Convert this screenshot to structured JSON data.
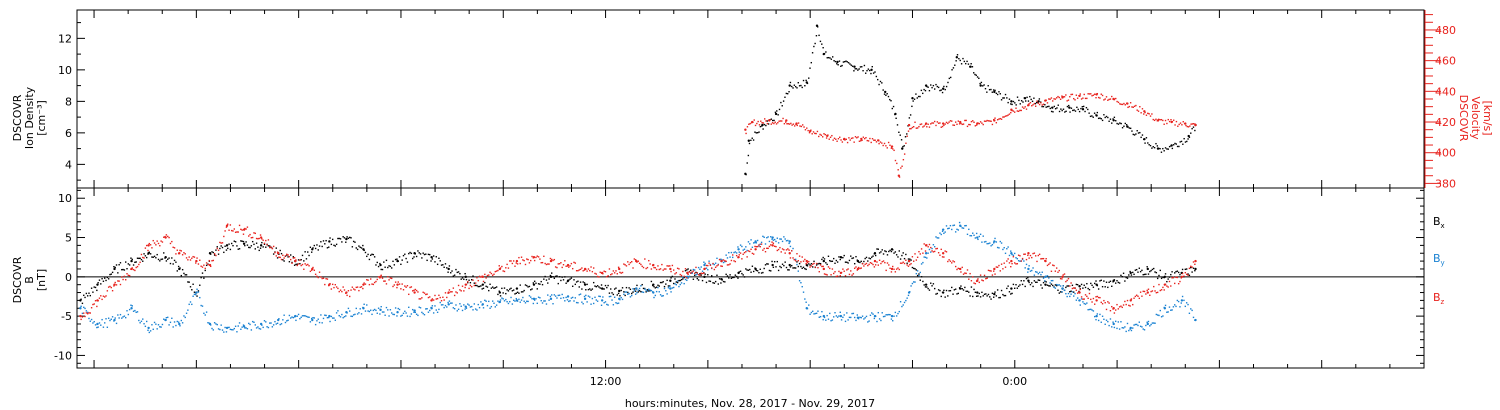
{
  "colors": {
    "black": "#000000",
    "red": "#e8231e",
    "blue": "#1a82d2"
  },
  "xlabel": "hours:minutes, Nov. 28, 2017 - Nov. 29, 2017",
  "x_ticks": [
    {
      "hours": 12,
      "label": "12:00"
    },
    {
      "hours": 24,
      "label": "0:00"
    }
  ],
  "panel1": {
    "ylabel_left": [
      "DSCOVR",
      "Ion Density",
      "[cm⁻³]"
    ],
    "ylabel_right": [
      "DSCOVR",
      "Velocity",
      "[km/s]"
    ],
    "left_ticks": [
      "4",
      "6",
      "8",
      "10",
      "12"
    ],
    "right_ticks": [
      "380",
      "400",
      "420",
      "440",
      "460",
      "480"
    ]
  },
  "panel2": {
    "ylabel_left": [
      "DSCOVR",
      "B",
      "[nT]"
    ],
    "ticks": [
      "-10",
      "-5",
      "0",
      "5",
      "10"
    ],
    "legend": [
      {
        "base": "B",
        "sub": "x"
      },
      {
        "base": "B",
        "sub": "y"
      },
      {
        "base": "B",
        "sub": "z"
      }
    ]
  },
  "chart_data": [
    {
      "type": "scatter",
      "x_axis": "hours since Nov. 28, 2017 00:00",
      "xlim": [
        -3.5,
        36
      ],
      "ylim_left": [
        2.5,
        13.8
      ],
      "ylim_right": [
        377,
        493
      ],
      "series": [
        {
          "name": "Ion Density",
          "axis": "left",
          "points": [
            [
              16.1,
              3.4
            ],
            [
              16.2,
              5.5
            ],
            [
              16.6,
              6.5
            ],
            [
              17.0,
              7.2
            ],
            [
              17.4,
              9.0
            ],
            [
              17.9,
              9.2
            ],
            [
              18.2,
              12.8
            ],
            [
              18.4,
              11.0
            ],
            [
              18.8,
              10.5
            ],
            [
              19.3,
              10.2
            ],
            [
              19.8,
              10.0
            ],
            [
              20.2,
              8.6
            ],
            [
              20.5,
              7.2
            ],
            [
              20.7,
              5.0
            ],
            [
              21.0,
              8.2
            ],
            [
              21.4,
              9.0
            ],
            [
              21.9,
              8.8
            ],
            [
              22.3,
              10.8
            ],
            [
              22.7,
              10.2
            ],
            [
              23.0,
              9.0
            ],
            [
              23.4,
              8.6
            ],
            [
              23.9,
              8.0
            ],
            [
              24.3,
              8.2
            ],
            [
              24.7,
              8.0
            ],
            [
              25.1,
              7.6
            ],
            [
              25.6,
              7.6
            ],
            [
              26.0,
              7.5
            ],
            [
              26.4,
              7.1
            ],
            [
              26.9,
              6.8
            ],
            [
              27.3,
              6.4
            ],
            [
              27.8,
              5.6
            ],
            [
              28.2,
              5.0
            ],
            [
              28.6,
              5.2
            ],
            [
              29.1,
              5.8
            ],
            [
              29.3,
              6.5
            ]
          ]
        },
        {
          "name": "Velocity",
          "axis": "right",
          "points": [
            [
              16.1,
              415
            ],
            [
              16.3,
              420
            ],
            [
              16.8,
              421
            ],
            [
              17.3,
              421
            ],
            [
              17.6,
              419
            ],
            [
              18.0,
              414
            ],
            [
              18.5,
              411
            ],
            [
              19.0,
              409
            ],
            [
              19.5,
              409
            ],
            [
              20.0,
              408
            ],
            [
              20.4,
              404
            ],
            [
              20.6,
              385
            ],
            [
              20.9,
              418
            ],
            [
              21.4,
              419
            ],
            [
              21.9,
              419
            ],
            [
              22.4,
              420
            ],
            [
              22.9,
              419
            ],
            [
              23.4,
              421
            ],
            [
              23.9,
              428
            ],
            [
              24.4,
              431
            ],
            [
              24.9,
              434
            ],
            [
              25.4,
              436
            ],
            [
              25.9,
              437
            ],
            [
              26.4,
              438
            ],
            [
              26.9,
              435
            ],
            [
              27.3,
              432
            ],
            [
              27.8,
              427
            ],
            [
              28.2,
              421
            ],
            [
              28.6,
              420
            ],
            [
              29.0,
              419
            ],
            [
              29.3,
              418
            ]
          ]
        }
      ]
    },
    {
      "type": "scatter",
      "x_axis": "hours since Nov. 28, 2017 00:00",
      "xlim": [
        -3.5,
        36
      ],
      "ylim": [
        -11.6,
        11.3
      ],
      "series": [
        {
          "name": "Bx",
          "points": [
            [
              -3.4,
              -3
            ],
            [
              -2.9,
              -1
            ],
            [
              -2.4,
              1
            ],
            [
              -1.9,
              2
            ],
            [
              -1.4,
              3
            ],
            [
              -0.9,
              2.5
            ],
            [
              -0.5,
              1
            ],
            [
              0.0,
              -2
            ],
            [
              0.4,
              3
            ],
            [
              0.9,
              4
            ],
            [
              1.4,
              4.2
            ],
            [
              1.9,
              4
            ],
            [
              2.4,
              3
            ],
            [
              2.9,
              2
            ],
            [
              3.4,
              3.5
            ],
            [
              3.9,
              4.5
            ],
            [
              4.4,
              4.8
            ],
            [
              4.9,
              3.5
            ],
            [
              5.4,
              1.5
            ],
            [
              5.9,
              2
            ],
            [
              6.4,
              3
            ],
            [
              6.9,
              2.5
            ],
            [
              7.4,
              1
            ],
            [
              7.9,
              0
            ],
            [
              8.4,
              -1
            ],
            [
              8.9,
              -2
            ],
            [
              9.4,
              -1.5
            ],
            [
              9.9,
              -1
            ],
            [
              10.4,
              0
            ],
            [
              10.9,
              -0.5
            ],
            [
              11.4,
              -1
            ],
            [
              11.9,
              -1.5
            ],
            [
              12.4,
              -1.8
            ],
            [
              12.9,
              -1.5
            ],
            [
              13.4,
              -1
            ],
            [
              13.9,
              -0.5
            ],
            [
              14.4,
              0.5
            ],
            [
              14.9,
              0
            ],
            [
              15.4,
              -0.3
            ],
            [
              15.9,
              0.5
            ],
            [
              16.4,
              1
            ],
            [
              16.9,
              1.5
            ],
            [
              17.4,
              1.5
            ],
            [
              17.9,
              1.5
            ],
            [
              18.4,
              2
            ],
            [
              18.9,
              2.5
            ],
            [
              19.4,
              2
            ],
            [
              19.9,
              3
            ],
            [
              20.4,
              3.5
            ],
            [
              20.9,
              2
            ],
            [
              21.4,
              -1
            ],
            [
              21.9,
              -2
            ],
            [
              22.4,
              -1.5
            ],
            [
              22.9,
              -2
            ],
            [
              23.4,
              -2.2
            ],
            [
              23.9,
              -1.5
            ],
            [
              24.4,
              -0.5
            ],
            [
              24.9,
              -1
            ],
            [
              25.4,
              -1.5
            ],
            [
              25.9,
              -1.2
            ],
            [
              26.4,
              -1
            ],
            [
              26.9,
              -0.5
            ],
            [
              27.4,
              0.5
            ],
            [
              27.9,
              1
            ],
            [
              28.4,
              0
            ],
            [
              28.9,
              0.5
            ],
            [
              29.3,
              1
            ]
          ]
        },
        {
          "name": "By",
          "points": [
            [
              -3.4,
              -4
            ],
            [
              -2.9,
              -6
            ],
            [
              -2.4,
              -5.5
            ],
            [
              -1.9,
              -4
            ],
            [
              -1.4,
              -6.5
            ],
            [
              -0.9,
              -5.5
            ],
            [
              -0.5,
              -6
            ],
            [
              0.0,
              -2
            ],
            [
              0.4,
              -6
            ],
            [
              0.9,
              -6.5
            ],
            [
              1.4,
              -6.3
            ],
            [
              1.9,
              -6
            ],
            [
              2.4,
              -5.5
            ],
            [
              2.9,
              -5
            ],
            [
              3.4,
              -5.5
            ],
            [
              3.9,
              -5
            ],
            [
              4.4,
              -4.5
            ],
            [
              4.9,
              -4
            ],
            [
              5.4,
              -4.2
            ],
            [
              5.9,
              -4.5
            ],
            [
              6.4,
              -4.3
            ],
            [
              6.9,
              -4
            ],
            [
              7.4,
              -3.5
            ],
            [
              7.9,
              -3.8
            ],
            [
              8.4,
              -3.5
            ],
            [
              8.9,
              -3.2
            ],
            [
              9.4,
              -3
            ],
            [
              9.9,
              -2.8
            ],
            [
              10.4,
              -2.8
            ],
            [
              10.9,
              -2.5
            ],
            [
              11.4,
              -2.8
            ],
            [
              11.9,
              -3
            ],
            [
              12.4,
              -2.8
            ],
            [
              12.9,
              -1.5
            ],
            [
              13.4,
              -2
            ],
            [
              13.9,
              -1.5
            ],
            [
              14.4,
              0
            ],
            [
              14.9,
              1.5
            ],
            [
              15.4,
              2
            ],
            [
              15.9,
              3.5
            ],
            [
              16.4,
              4.5
            ],
            [
              16.9,
              5
            ],
            [
              17.4,
              4.5
            ],
            [
              17.9,
              -4
            ],
            [
              18.4,
              -5
            ],
            [
              18.9,
              -5
            ],
            [
              19.4,
              -5.2
            ],
            [
              19.9,
              -5
            ],
            [
              20.4,
              -5
            ],
            [
              20.9,
              -2
            ],
            [
              21.4,
              3
            ],
            [
              21.9,
              6
            ],
            [
              22.4,
              6.5
            ],
            [
              22.9,
              5
            ],
            [
              23.4,
              4.5
            ],
            [
              23.9,
              3
            ],
            [
              24.4,
              1
            ],
            [
              24.9,
              0
            ],
            [
              25.4,
              -1.5
            ],
            [
              25.9,
              -3
            ],
            [
              26.4,
              -5
            ],
            [
              26.9,
              -6
            ],
            [
              27.4,
              -6.5
            ],
            [
              27.9,
              -6
            ],
            [
              28.4,
              -4
            ],
            [
              28.9,
              -3
            ],
            [
              29.3,
              -5.5
            ]
          ]
        },
        {
          "name": "Bz",
          "points": [
            [
              -3.4,
              -5
            ],
            [
              -2.9,
              -3
            ],
            [
              -2.4,
              -1
            ],
            [
              -1.9,
              1
            ],
            [
              -1.4,
              4
            ],
            [
              -0.9,
              5
            ],
            [
              -0.5,
              3
            ],
            [
              0.0,
              2
            ],
            [
              0.4,
              1.5
            ],
            [
              0.9,
              6.5
            ],
            [
              1.4,
              6
            ],
            [
              1.9,
              5
            ],
            [
              2.4,
              3
            ],
            [
              2.9,
              2
            ],
            [
              3.4,
              1
            ],
            [
              3.9,
              -1
            ],
            [
              4.4,
              -2
            ],
            [
              4.9,
              -1
            ],
            [
              5.4,
              0
            ],
            [
              5.9,
              -1
            ],
            [
              6.4,
              -2
            ],
            [
              6.9,
              -3
            ],
            [
              7.4,
              -2
            ],
            [
              7.9,
              -1
            ],
            [
              8.4,
              0
            ],
            [
              8.9,
              1
            ],
            [
              9.4,
              2
            ],
            [
              9.9,
              2.5
            ],
            [
              10.4,
              2
            ],
            [
              10.9,
              1.5
            ],
            [
              11.4,
              1
            ],
            [
              11.9,
              0.5
            ],
            [
              12.4,
              1
            ],
            [
              12.9,
              2
            ],
            [
              13.4,
              1.5
            ],
            [
              13.9,
              1
            ],
            [
              14.4,
              0.5
            ],
            [
              14.9,
              1
            ],
            [
              15.4,
              2
            ],
            [
              15.9,
              2.5
            ],
            [
              16.4,
              3.5
            ],
            [
              16.9,
              4
            ],
            [
              17.4,
              3
            ],
            [
              17.9,
              2
            ],
            [
              18.4,
              1
            ],
            [
              18.9,
              0.5
            ],
            [
              19.4,
              1
            ],
            [
              19.9,
              2
            ],
            [
              20.4,
              1
            ],
            [
              20.9,
              2
            ],
            [
              21.4,
              4
            ],
            [
              21.9,
              3
            ],
            [
              22.4,
              1
            ],
            [
              22.9,
              -0.5
            ],
            [
              23.4,
              1
            ],
            [
              23.9,
              2
            ],
            [
              24.4,
              3
            ],
            [
              24.9,
              2
            ],
            [
              25.4,
              0
            ],
            [
              25.9,
              -2
            ],
            [
              26.4,
              -3
            ],
            [
              26.9,
              -4
            ],
            [
              27.4,
              -3
            ],
            [
              27.9,
              -2
            ],
            [
              28.4,
              -1
            ],
            [
              28.9,
              0
            ],
            [
              29.3,
              2
            ]
          ]
        }
      ]
    }
  ]
}
